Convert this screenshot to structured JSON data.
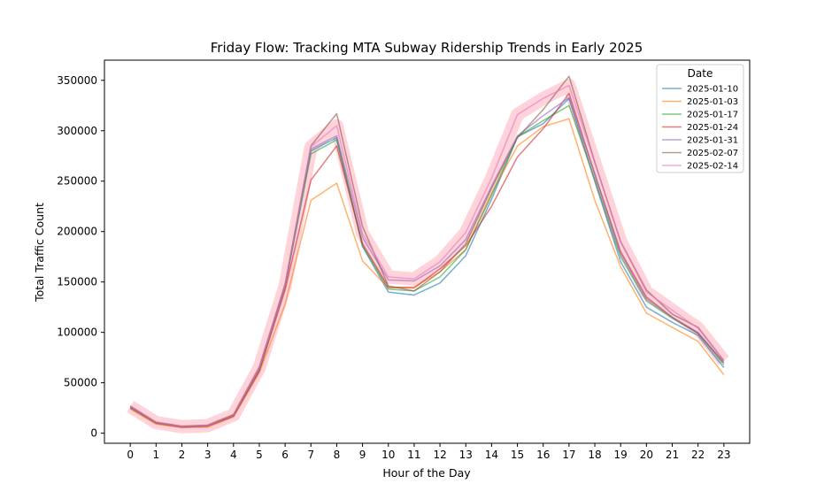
{
  "chart_data": {
    "type": "line",
    "title": "Friday Flow: Tracking MTA Subway Ridership Trends in Early 2025",
    "xlabel": "Hour of the Day",
    "ylabel": "Total Traffic Count",
    "x": [
      0,
      1,
      2,
      3,
      4,
      5,
      6,
      7,
      8,
      9,
      10,
      11,
      12,
      13,
      14,
      15,
      16,
      17,
      18,
      19,
      20,
      21,
      22,
      23
    ],
    "xlim": [
      -1,
      24
    ],
    "ylim": [
      -10000,
      370000
    ],
    "yticks": [
      0,
      50000,
      100000,
      150000,
      200000,
      250000,
      300000,
      350000
    ],
    "grid": false,
    "legend": {
      "title": "Date",
      "placement": "top-right"
    },
    "highlight": {
      "series": "2025-02-14",
      "color": "#ffc0cb"
    },
    "series": [
      {
        "name": "2025-01-10",
        "color": "#1f77b4",
        "values": [
          25000,
          10000,
          6000,
          7000,
          17000,
          62000,
          145000,
          280000,
          293000,
          185000,
          140000,
          137000,
          149000,
          176000,
          232000,
          294000,
          307000,
          332000,
          250000,
          170000,
          125000,
          110000,
          97000,
          65000
        ]
      },
      {
        "name": "2025-01-03",
        "color": "#ff7f0e",
        "values": [
          24000,
          9000,
          5500,
          6000,
          16000,
          60000,
          128000,
          231000,
          248000,
          171000,
          144000,
          145000,
          160000,
          182000,
          238000,
          285000,
          304000,
          312000,
          231000,
          165000,
          119000,
          105000,
          91000,
          58000
        ]
      },
      {
        "name": "2025-01-17",
        "color": "#2ca02c",
        "values": [
          26000,
          10500,
          6500,
          7500,
          17500,
          64000,
          146000,
          277000,
          291000,
          186000,
          143000,
          141000,
          155000,
          182000,
          236000,
          294000,
          310000,
          325000,
          252000,
          175000,
          131000,
          114000,
          99000,
          68000
        ]
      },
      {
        "name": "2025-01-24",
        "color": "#d62728",
        "values": [
          25500,
          10000,
          6000,
          7000,
          17000,
          62000,
          142000,
          251000,
          285000,
          188000,
          145000,
          144000,
          163000,
          186000,
          225000,
          274000,
          302000,
          337000,
          257000,
          180000,
          135000,
          115000,
          99000,
          70000
        ]
      },
      {
        "name": "2025-01-31",
        "color": "#9467bd",
        "values": [
          26000,
          10500,
          6500,
          7500,
          18000,
          64000,
          146000,
          282000,
          295000,
          194000,
          152000,
          151000,
          166000,
          192000,
          245000,
          295000,
          315000,
          333000,
          257000,
          178000,
          133000,
          115000,
          100000,
          70000
        ]
      },
      {
        "name": "2025-02-07",
        "color": "#8c564b",
        "values": [
          27000,
          11000,
          7000,
          8000,
          18500,
          66000,
          148000,
          285000,
          317000,
          205000,
          146000,
          141000,
          160000,
          188000,
          243000,
          293000,
          321000,
          354000,
          269000,
          190000,
          142000,
          118000,
          105000,
          72000
        ]
      },
      {
        "name": "2025-02-14",
        "color": "#e377c2",
        "values": [
          26500,
          10500,
          6500,
          7500,
          18000,
          65000,
          146000,
          284000,
          305000,
          198000,
          155000,
          153000,
          170000,
          199000,
          253000,
          316000,
          332000,
          345000,
          268000,
          190000,
          140000,
          122000,
          104000,
          72000
        ]
      }
    ]
  }
}
